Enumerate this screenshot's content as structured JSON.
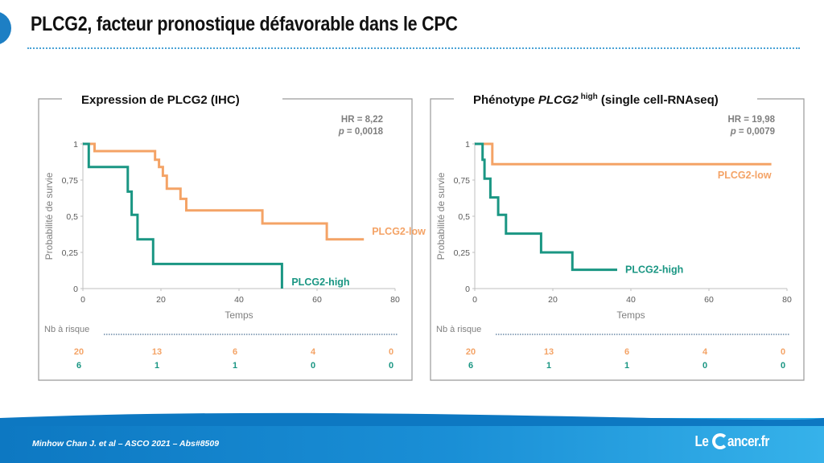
{
  "slide": {
    "title": "PLCG2, facteur pronostique défavorable dans le CPC",
    "citation": "Minhow Chan J. et al – ASCO 2021 – Abs#8509",
    "logo_prefix": "Le",
    "logo_suffix": "ancer.fr"
  },
  "colors": {
    "low": "#f4a366",
    "high": "#1a9683",
    "accent": "#1d7fc4"
  },
  "chart_data": [
    {
      "type": "line",
      "subtype": "kaplan-meier",
      "title": "Expression de PLCG2 (IHC)",
      "title_parts": {
        "before": "Expression de PLCG2 (IHC)",
        "italic": "",
        "superscript": "",
        "after": ""
      },
      "xlabel": "Temps",
      "ylabel": "Probabilité de survie",
      "xlim": [
        0,
        80
      ],
      "ylim": [
        0,
        1
      ],
      "x_ticks": [
        0,
        20,
        40,
        60,
        80
      ],
      "y_ticks": [
        0,
        0.25,
        0.5,
        0.75,
        1
      ],
      "y_tick_labels": [
        "0",
        "0,25",
        "0,5",
        "0,75",
        "1"
      ],
      "hr_text": "HR = 8,22",
      "p_label": "p",
      "p_value_text": " = 0,0018",
      "series": [
        {
          "name": "PLCG2-low",
          "color": "#f4a366",
          "label_pos": "right",
          "x": [
            0,
            3,
            3,
            18.5,
            18.5,
            19.5,
            19.5,
            20.5,
            20.5,
            21.5,
            21.5,
            25,
            25,
            26.5,
            26.5,
            46,
            46,
            62.5,
            62.5,
            72
          ],
          "y": [
            1,
            1,
            0.95,
            0.95,
            0.89,
            0.89,
            0.84,
            0.84,
            0.78,
            0.78,
            0.69,
            0.69,
            0.62,
            0.62,
            0.54,
            0.54,
            0.45,
            0.45,
            0.34,
            0.34
          ]
        },
        {
          "name": "PLCG2-high",
          "color": "#1a9683",
          "label_pos": "below",
          "x": [
            0,
            1.5,
            1.5,
            11.5,
            11.5,
            12.5,
            12.5,
            14,
            14,
            18,
            18,
            51,
            51
          ],
          "y": [
            1,
            1,
            0.84,
            0.84,
            0.67,
            0.67,
            0.51,
            0.51,
            0.34,
            0.34,
            0.17,
            0.17,
            0
          ]
        }
      ],
      "risk_table": {
        "header": "Nb à risque",
        "x": [
          0,
          20,
          40,
          60,
          80
        ],
        "rows": [
          {
            "name": "PLCG2-low",
            "color": "#f4a366",
            "values": [
              "20",
              "13",
              "6",
              "4",
              "0"
            ]
          },
          {
            "name": "PLCG2-high",
            "color": "#1a9683",
            "values": [
              "6",
              "1",
              "1",
              "0",
              "0"
            ]
          }
        ]
      }
    },
    {
      "type": "line",
      "subtype": "kaplan-meier",
      "title": "Phénotype PLCG2 high (single cell-RNAseq)",
      "title_parts": {
        "before": "Phénotype ",
        "italic": "PLCG2",
        "superscript": " high",
        "after": " (single cell-RNAseq)"
      },
      "xlabel": "Temps",
      "ylabel": "Probabilité de survie",
      "xlim": [
        0,
        80
      ],
      "ylim": [
        0,
        1
      ],
      "x_ticks": [
        0,
        20,
        40,
        60,
        80
      ],
      "y_ticks": [
        0,
        0.25,
        0.5,
        0.75,
        1
      ],
      "y_tick_labels": [
        "0",
        "0,25",
        "0,5",
        "0,75",
        "1"
      ],
      "hr_text": "HR = 19,98",
      "p_label": "p",
      "p_value_text": " = 0,0079",
      "series": [
        {
          "name": "PLCG2-low",
          "color": "#f4a366",
          "label_pos": "below",
          "x": [
            0,
            4.5,
            4.5,
            76
          ],
          "y": [
            1,
            1,
            0.86,
            0.86
          ]
        },
        {
          "name": "PLCG2-high",
          "color": "#1a9683",
          "label_pos": "right",
          "x": [
            0,
            2,
            2,
            2.5,
            2.5,
            4,
            4,
            6,
            6,
            8,
            8,
            17,
            17,
            25,
            25,
            36.5
          ],
          "y": [
            1,
            1,
            0.89,
            0.89,
            0.76,
            0.76,
            0.63,
            0.63,
            0.51,
            0.51,
            0.38,
            0.38,
            0.25,
            0.25,
            0.13,
            0.13
          ]
        }
      ],
      "risk_table": {
        "header": "Nb à risque",
        "x": [
          0,
          20,
          40,
          60,
          80
        ],
        "rows": [
          {
            "name": "PLCG2-low",
            "color": "#f4a366",
            "values": [
              "20",
              "13",
              "6",
              "4",
              "0"
            ]
          },
          {
            "name": "PLCG2-high",
            "color": "#1a9683",
            "values": [
              "6",
              "1",
              "1",
              "0",
              "0"
            ]
          }
        ]
      }
    }
  ]
}
